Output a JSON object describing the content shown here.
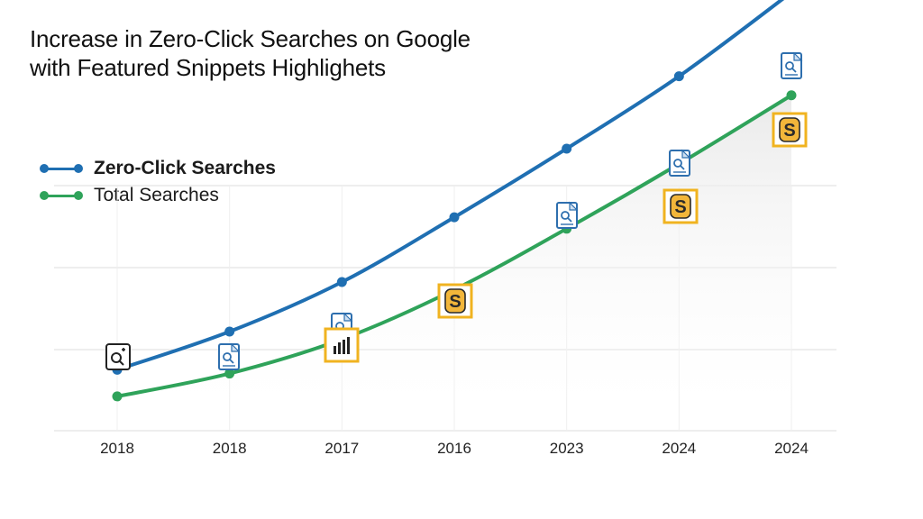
{
  "colors": {
    "zero_click": "#1f6fb2",
    "total": "#2fa35a",
    "snippet_frame": "#f0b320",
    "snippet_fill": "#f2b63a",
    "doc_icon": "#2e6fae",
    "grid": "#dcdcdc"
  },
  "chart_data": {
    "type": "line",
    "title_lines": [
      "Increase in Zero-Click Searches on Google",
      "with Featured Snippets Highlighets"
    ],
    "xlabel": "",
    "ylabel": "",
    "categories": [
      "2018",
      "2018",
      "2017",
      "2016",
      "2023",
      "2024",
      "2024"
    ],
    "ylim": [
      0,
      100
    ],
    "grid": true,
    "y_ticks_shown": false,
    "legend_position": "top-left",
    "series": [
      {
        "name": "Zero-Click Searches",
        "color": "#1f6fb2",
        "bold_label": true,
        "values": [
          16,
          26,
          39,
          56,
          74,
          93,
          115
        ]
      },
      {
        "name": "Total Searches",
        "color": "#2fa35a",
        "bold_label": false,
        "values": [
          9,
          15,
          24,
          37,
          53,
          70,
          88
        ]
      }
    ],
    "annotations": [
      {
        "category_index": 0,
        "icon": "search-frame-icon"
      },
      {
        "category_index": 1,
        "icon": "document-search-icon"
      },
      {
        "category_index": 2,
        "icon": "document-search-icon"
      },
      {
        "category_index": 2,
        "icon": "bar-chart-snippet-icon"
      },
      {
        "category_index": 3,
        "icon": "snippet-s-icon"
      },
      {
        "category_index": 4,
        "icon": "document-search-icon"
      },
      {
        "category_index": 5,
        "icon": "document-search-icon"
      },
      {
        "category_index": 5,
        "icon": "snippet-s-icon"
      },
      {
        "category_index": 6,
        "icon": "document-search-icon"
      },
      {
        "category_index": 6,
        "icon": "snippet-s-icon"
      }
    ]
  }
}
